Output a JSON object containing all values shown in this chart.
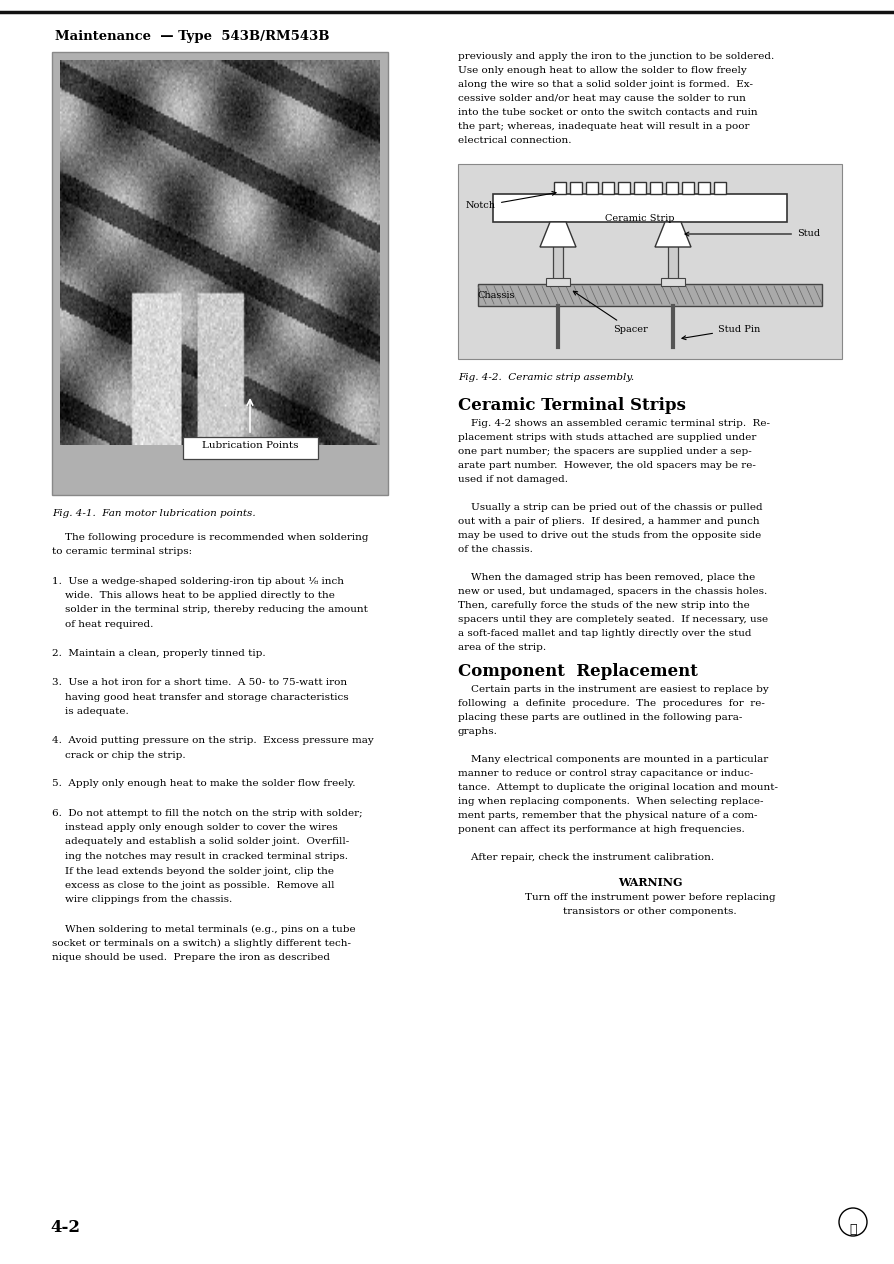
{
  "page_width": 8.95,
  "page_height": 12.64,
  "dpi": 100,
  "bg_color": "#ffffff",
  "header_text": "Maintenance  — Type  543B/RM543B",
  "header_fontsize": 9.5,
  "body_fontsize": 7.5,
  "body_fontsize_sm": 7.2,
  "caption_fontsize": 7.5,
  "section_fontsize": 12,
  "warning_fontsize": 8,
  "footer_left": "4-2",
  "fig41_caption": "Fig. 4-1.  Fan motor lubrication points.",
  "fig41_label": "Lubrication Points",
  "fig42_caption": "Fig. 4-2.  Ceramic strip assembly.",
  "right_top_lines": [
    "previously and apply the iron to the junction to be soldered.",
    "Use only enough heat to allow the solder to flow freely",
    "along the wire so that a solid solder joint is formed.  Ex-",
    "cessive solder and/or heat may cause the solder to run",
    "into the tube socket or onto the switch contacts and ruin",
    "the part; whereas, inadequate heat will result in a poor",
    "electrical connection."
  ],
  "ceramic_title": "Ceramic Terminal Strips",
  "ceramic_lines": [
    "    Fig. 4-2 shows an assembled ceramic terminal strip.  Re-",
    "placement strips with studs attached are supplied under",
    "one part number; the spacers are supplied under a sep-",
    "arate part number.  However, the old spacers may be re-",
    "used if not damaged.",
    "",
    "    Usually a strip can be pried out of the chassis or pulled",
    "out with a pair of pliers.  If desired, a hammer and punch",
    "may be used to drive out the studs from the opposite side",
    "of the chassis.",
    "",
    "    When the damaged strip has been removed, place the",
    "new or used, but undamaged, spacers in the chassis holes.",
    "Then, carefully force the studs of the new strip into the",
    "spacers until they are completely seated.  If necessary, use",
    "a soft-faced mallet and tap lightly directly over the stud",
    "area of the strip."
  ],
  "component_title": "Component  Replacement",
  "component_lines": [
    "    Certain parts in the instrument are easiest to replace by",
    "following  a  definite  procedure.  The  procedures  for  re-",
    "placing these parts are outlined in the following para-",
    "graphs.",
    "",
    "    Many electrical components are mounted in a particular",
    "manner to reduce or control stray capacitance or induc-",
    "tance.  Attempt to duplicate the original location and mount-",
    "ing when replacing components.  When selecting replace-",
    "ment parts, remember that the physical nature of a com-",
    "ponent can affect its performance at high frequencies.",
    "",
    "    After repair, check the instrument calibration."
  ],
  "warning_title": "WARNING",
  "warning_lines": [
    "Turn off the instrument power before replacing",
    "transistors or other components."
  ],
  "left_lines": [
    "    The following procedure is recommended when soldering",
    "to ceramic terminal strips:",
    "",
    "1.  Use a wedge-shaped soldering-iron tip about ⅛ inch",
    "    wide.  This allows heat to be applied directly to the",
    "    solder in the terminal strip, thereby reducing the amount",
    "    of heat required.",
    "",
    "2.  Maintain a clean, properly tinned tip.",
    "",
    "3.  Use a hot iron for a short time.  A 50- to 75-watt iron",
    "    having good heat transfer and storage characteristics",
    "    is adequate.",
    "",
    "4.  Avoid putting pressure on the strip.  Excess pressure may",
    "    crack or chip the strip.",
    "",
    "5.  Apply only enough heat to make the solder flow freely.",
    "",
    "6.  Do not attempt to fill the notch on the strip with solder;",
    "    instead apply only enough solder to cover the wires",
    "    adequately and establish a solid solder joint.  Overfill-",
    "    ing the notches may result in cracked terminal strips.",
    "    If the lead extends beyond the solder joint, clip the",
    "    excess as close to the joint as possible.  Remove all",
    "    wire clippings from the chassis.",
    "",
    "    When soldering to metal terminals (e.g., pins on a tube",
    "socket or terminals on a switch) a slightly different tech-",
    "nique should be used.  Prepare the iron as described"
  ]
}
